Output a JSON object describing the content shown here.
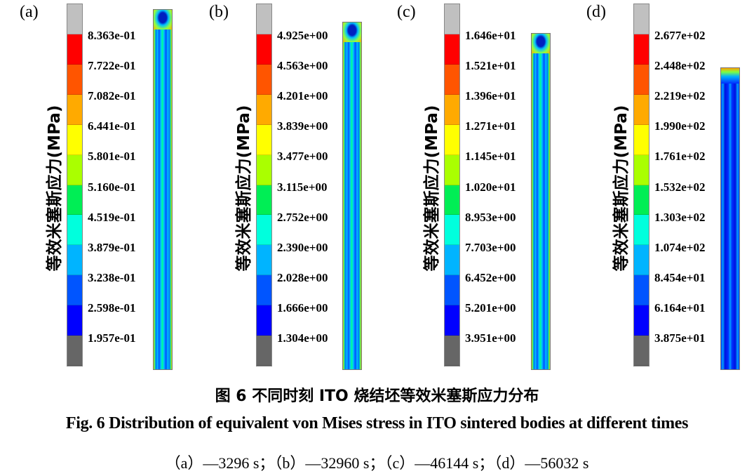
{
  "figure": {
    "y_axis_label": "等效米塞斯应力(MPa)",
    "colorbar_colors": [
      "#c0c0c0",
      "#ff0000",
      "#ff5500",
      "#ffaa00",
      "#ffff00",
      "#aaff00",
      "#00ee55",
      "#00ffdd",
      "#00b4ff",
      "#0055ff",
      "#0000ff",
      "#666666"
    ],
    "panels": [
      {
        "label": "(a)",
        "ticks": [
          "8.363e-01",
          "7.722e-01",
          "7.082e-01",
          "6.441e-01",
          "5.801e-01",
          "5.160e-01",
          "4.519e-01",
          "3.879e-01",
          "3.238e-01",
          "2.598e-01",
          "1.957e-01"
        ]
      },
      {
        "label": "(b)",
        "ticks": [
          "4.925e+00",
          "4.563e+00",
          "4.201e+00",
          "3.839e+00",
          "3.477e+00",
          "3.115e+00",
          "2.752e+00",
          "2.390e+00",
          "2.028e+00",
          "1.666e+00",
          "1.304e+00"
        ]
      },
      {
        "label": "(c)",
        "ticks": [
          "1.646e+01",
          "1.521e+01",
          "1.396e+01",
          "1.271e+01",
          "1.145e+01",
          "1.020e+01",
          "8.953e+00",
          "7.703e+00",
          "6.452e+00",
          "5.201e+00",
          "3.951e+00"
        ]
      },
      {
        "label": "(d)",
        "ticks": [
          "2.677e+02",
          "2.448e+02",
          "2.219e+02",
          "1.990e+02",
          "1.761e+02",
          "1.532e+02",
          "1.303e+02",
          "1.074e+02",
          "8.454e+01",
          "6.164e+01",
          "3.875e+01"
        ]
      }
    ]
  },
  "caption": {
    "chinese": "图 6  不同时刻 ITO 烧结坯等效米塞斯应力分布",
    "english": "Fig. 6 Distribution of equivalent von Mises stress in ITO sintered bodies at different times",
    "times": "（a）—3296 s；（b）—32960 s；（c）—46144 s；（d）—56032 s"
  }
}
